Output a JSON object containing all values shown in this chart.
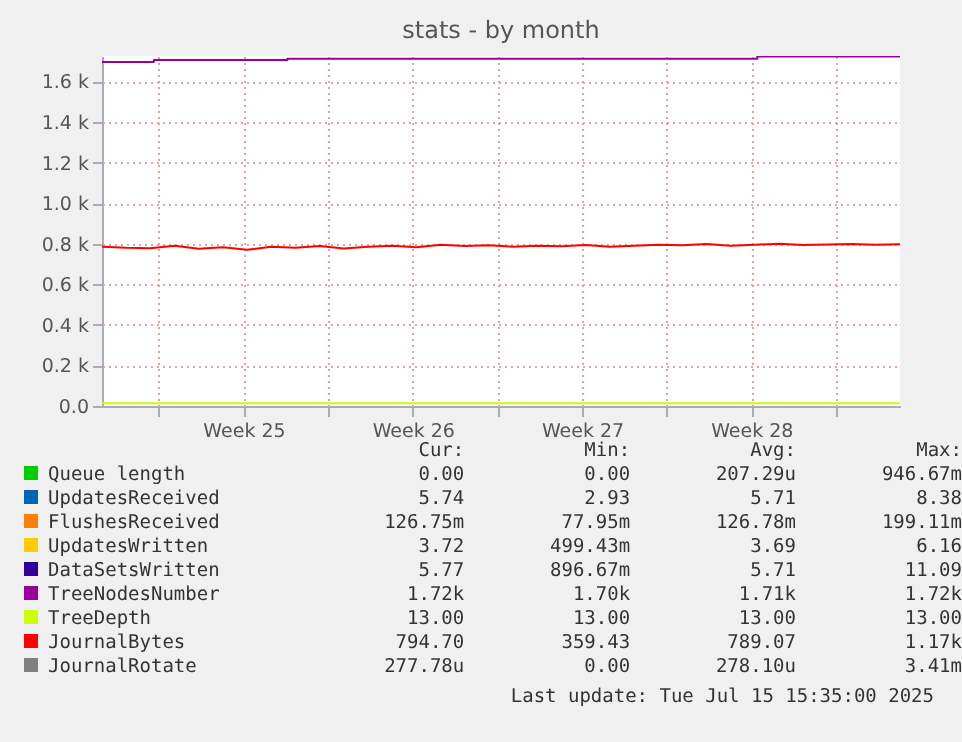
{
  "chart_data": {
    "type": "line",
    "title": "stats - by month",
    "x": [
      "2025-06-12T15:35",
      "2025-06-13T15:35",
      "2025-06-14T15:35",
      "2025-06-15T15:35",
      "2025-06-16T15:35",
      "2025-06-17T15:35",
      "2025-06-18T15:35",
      "2025-06-19T15:35",
      "2025-06-20T15:35",
      "2025-06-21T15:35",
      "2025-06-22T15:35",
      "2025-06-23T15:35",
      "2025-06-24T15:35",
      "2025-06-25T15:35",
      "2025-06-26T15:35",
      "2025-06-27T15:35",
      "2025-06-28T15:35",
      "2025-06-29T15:35",
      "2025-06-30T15:35",
      "2025-07-01T15:35",
      "2025-07-02T15:35",
      "2025-07-03T15:35",
      "2025-07-04T15:35",
      "2025-07-05T15:35",
      "2025-07-06T15:35",
      "2025-07-07T15:35",
      "2025-07-08T15:35",
      "2025-07-09T15:35",
      "2025-07-10T15:35",
      "2025-07-11T15:35",
      "2025-07-12T15:35",
      "2025-07-13T15:35",
      "2025-07-14T15:35",
      "2025-07-15T15:35"
    ],
    "series": [
      {
        "name": "Queue length",
        "color": "#00cc00",
        "values": [
          null,
          null,
          null,
          null,
          null,
          null,
          null,
          null,
          null,
          null,
          null,
          null,
          null,
          null,
          null,
          null,
          null,
          null,
          null,
          null,
          null,
          null,
          null,
          null,
          null,
          null,
          null,
          null,
          null,
          null,
          null,
          null,
          null,
          null
        ]
      },
      {
        "name": "UpdatesReceived",
        "color": "#0066b3",
        "values": [
          null,
          null,
          null,
          null,
          null,
          null,
          null,
          null,
          null,
          null,
          null,
          null,
          null,
          null,
          null,
          null,
          null,
          null,
          null,
          null,
          null,
          null,
          null,
          null,
          null,
          null,
          null,
          null,
          null,
          null,
          null,
          null,
          null,
          null
        ]
      },
      {
        "name": "FlushesReceived",
        "color": "#ff8000",
        "values": [
          null,
          null,
          null,
          null,
          null,
          null,
          null,
          null,
          null,
          null,
          null,
          null,
          null,
          null,
          null,
          null,
          null,
          null,
          null,
          null,
          null,
          null,
          null,
          null,
          null,
          null,
          null,
          null,
          null,
          null,
          null,
          null,
          null,
          null
        ]
      },
      {
        "name": "UpdatesWritten",
        "color": "#ffcc00",
        "values": [
          null,
          null,
          null,
          null,
          null,
          null,
          null,
          null,
          null,
          null,
          null,
          null,
          null,
          null,
          null,
          null,
          null,
          null,
          null,
          null,
          null,
          null,
          null,
          null,
          null,
          null,
          null,
          null,
          null,
          null,
          null,
          null,
          null,
          null
        ]
      },
      {
        "name": "DataSetsWritten",
        "color": "#330099",
        "values": [
          null,
          null,
          null,
          null,
          null,
          null,
          null,
          null,
          null,
          null,
          null,
          null,
          null,
          null,
          null,
          null,
          null,
          null,
          null,
          null,
          null,
          null,
          null,
          null,
          null,
          null,
          null,
          null,
          null,
          null,
          null,
          null,
          null,
          null
        ]
      },
      {
        "name": "TreeNodesNumber",
        "color": "#990099",
        "x": [
          "2025-06-12T15:35",
          "2025-06-14T19:00",
          "2025-06-14T19:00",
          "2025-06-20T07:35",
          "2025-06-20T07:35",
          "2025-07-09T18:00",
          "2025-07-09T18:00",
          "2025-07-15T15:35"
        ],
        "values": [
          1695,
          1695,
          1705,
          1705,
          1712,
          1712,
          1722,
          1722
        ]
      },
      {
        "name": "TreeDepth",
        "color": "#ccff00",
        "values": [
          13,
          13,
          13,
          13,
          13,
          13,
          13,
          13,
          13,
          13,
          13,
          13,
          13,
          13,
          13,
          13,
          13,
          13,
          13,
          13,
          13,
          13,
          13,
          13,
          13,
          13,
          13,
          13,
          13,
          13,
          13,
          13,
          13,
          13
        ]
      },
      {
        "name": "JournalBytes",
        "color": "#ff0000",
        "values": [
          785,
          780,
          778,
          790,
          775,
          782,
          770,
          785,
          780,
          788,
          776,
          785,
          790,
          782,
          795,
          788,
          792,
          785,
          790,
          787,
          793,
          785,
          790,
          795,
          792,
          798,
          790,
          795,
          800,
          793,
          796,
          798,
          795,
          797
        ]
      },
      {
        "name": "JournalRotate",
        "color": "#808080",
        "values": [
          null,
          null,
          null,
          null,
          null,
          null,
          null,
          null,
          null,
          null,
          null,
          null,
          null,
          null,
          null,
          null,
          null,
          null,
          null,
          null,
          null,
          null,
          null,
          null,
          null,
          null,
          null,
          null,
          null,
          null,
          null,
          null,
          null,
          null
        ]
      }
    ],
    "xlim": [
      "2025-06-12T15:35",
      "2025-07-15T15:35"
    ],
    "xticks": [
      {
        "value": "2025-06-15T00:00",
        "label": null
      },
      {
        "value": "2025-06-18T12:00",
        "label": "Week 25"
      },
      {
        "value": "2025-06-22T00:00",
        "label": null
      },
      {
        "value": "2025-06-25T12:00",
        "label": "Week 26"
      },
      {
        "value": "2025-06-29T00:00",
        "label": null
      },
      {
        "value": "2025-07-02T12:00",
        "label": "Week 27"
      },
      {
        "value": "2025-07-06T00:00",
        "label": null
      },
      {
        "value": "2025-07-09T12:00",
        "label": "Week 28"
      },
      {
        "value": "2025-07-13T00:00",
        "label": null
      }
    ],
    "ylim": [
      0,
      1725
    ],
    "yticks": [
      {
        "value": 0,
        "label": "0.0"
      },
      {
        "value": 200,
        "label": "0.2 k"
      },
      {
        "value": 400,
        "label": "0.4 k"
      },
      {
        "value": 600,
        "label": "0.6 k"
      },
      {
        "value": 800,
        "label": "0.8 k"
      },
      {
        "value": 1000,
        "label": "1.0 k"
      },
      {
        "value": 1200,
        "label": "1.2 k"
      },
      {
        "value": 1400,
        "label": "1.4 k"
      },
      {
        "value": 1600,
        "label": "1.6 k"
      }
    ],
    "grid": true,
    "legend": "bottom",
    "marker": "none",
    "line_style": "solid",
    "annotations": [
      "Cur:",
      "Min:",
      "Avg:",
      "Max:",
      "0.00",
      "0.00",
      "207.29u",
      "946.67m",
      "5.74",
      "2.93",
      "5.71",
      "8.38",
      "126.75m",
      "77.95m",
      "126.78m",
      "199.11m",
      "3.72",
      "499.43m",
      "3.69",
      "6.16",
      "5.77",
      "896.67m",
      "5.71",
      "11.09",
      "1.72k",
      "1.70k",
      "1.71k",
      "1.72k",
      "13.00",
      "13.00",
      "13.00",
      "13.00",
      "794.70",
      "359.43",
      "789.07",
      "1.17k",
      "277.78u",
      "0.00",
      "278.10u",
      "3.41m",
      "Last update: Tue Jul 15 15:35:00 2025"
    ]
  }
}
